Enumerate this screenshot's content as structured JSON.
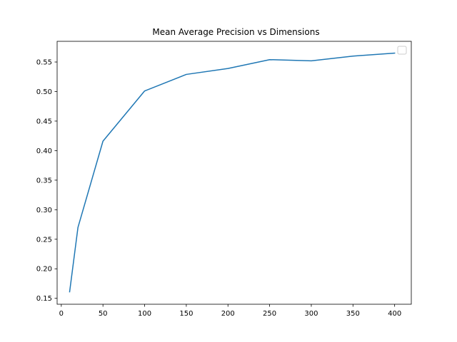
{
  "chart_data": {
    "type": "line",
    "title": "Mean Average Precision vs Dimensions",
    "xlabel": "",
    "ylabel": "",
    "xlim": [
      -5,
      420
    ],
    "ylim": [
      0.14,
      0.585
    ],
    "xticks": [
      0,
      50,
      100,
      150,
      200,
      250,
      300,
      350,
      400
    ],
    "yticks": [
      0.15,
      0.2,
      0.25,
      0.3,
      0.35,
      0.4,
      0.45,
      0.5,
      0.55
    ],
    "xtick_labels": [
      "0",
      "50",
      "100",
      "150",
      "200",
      "250",
      "300",
      "350",
      "400"
    ],
    "ytick_labels": [
      "0.15",
      "0.20",
      "0.25",
      "0.30",
      "0.35",
      "0.40",
      "0.45",
      "0.50",
      "0.55"
    ],
    "grid": false,
    "legend": {
      "placement": "top-right",
      "entries": []
    },
    "colors": {
      "line": "#1f77b4",
      "axes": "#000000",
      "background": "#ffffff"
    },
    "series": [
      {
        "x": [
          10,
          20,
          50,
          100,
          150,
          200,
          250,
          300,
          350,
          400
        ],
        "y": [
          0.161,
          0.27,
          0.416,
          0.501,
          0.529,
          0.539,
          0.554,
          0.552,
          0.56,
          0.565
        ]
      }
    ]
  }
}
